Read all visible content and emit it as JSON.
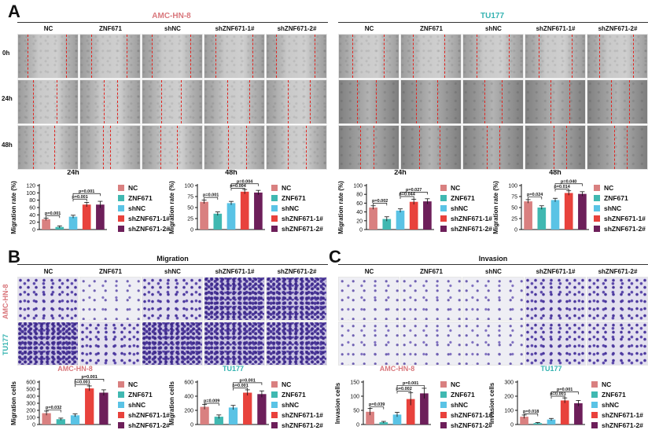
{
  "panels": {
    "A": "A",
    "B": "B",
    "C": "C"
  },
  "palette": [
    "#d98080",
    "#40b8b1",
    "#5ac3e5",
    "#e8423c",
    "#6d1f5a"
  ],
  "groups": [
    "NC",
    "ZNF671",
    "shNC",
    "shZNF671-1#",
    "shZNF671-2#"
  ],
  "panel_a": {
    "left_title": "AMC-HN-8",
    "right_title": "TU177",
    "rows": [
      "0h",
      "24h",
      "48h"
    ]
  },
  "panel_b": {
    "title": "Migration",
    "row_labels": [
      "AMC-HN-8",
      "TU177"
    ]
  },
  "panel_c": {
    "title": "Invasion"
  },
  "chart_data": [
    {
      "id": "a1",
      "type": "bar",
      "title": "24h",
      "ylabel": "Migration rate (%)",
      "ylim": [
        0,
        120
      ],
      "yticks": [
        0,
        20,
        40,
        60,
        80,
        100,
        120
      ],
      "categories": [
        "NC",
        "ZNF671",
        "shNC",
        "shZNF671-1#",
        "shZNF671-2#"
      ],
      "values": [
        28,
        7,
        35,
        68,
        68
      ],
      "errors": [
        3,
        3,
        4,
        6,
        9
      ],
      "brackets": [
        {
          "from": 0,
          "to": 1,
          "label": "p=0.001",
          "y": 38
        },
        {
          "from": 2,
          "to": 3,
          "label": "p=0.001",
          "y": 83
        },
        {
          "from": 2,
          "to": 4,
          "label": "p=0.001",
          "y": 98
        }
      ]
    },
    {
      "id": "a2",
      "type": "bar",
      "title": "48h",
      "ylabel": "Migration rate (%)",
      "ylim": [
        0,
        100
      ],
      "yticks": [
        0,
        25,
        50,
        75,
        100
      ],
      "categories": [
        "NC",
        "ZNF671",
        "shNC",
        "shZNF671-1#",
        "shZNF671-2#"
      ],
      "values": [
        63,
        36,
        60,
        86,
        84
      ],
      "errors": [
        4,
        4,
        4,
        5,
        5
      ],
      "brackets": [
        {
          "from": 0,
          "to": 1,
          "label": "p=0.001",
          "y": 73
        },
        {
          "from": 2,
          "to": 3,
          "label": "p=0.004",
          "y": 94
        },
        {
          "from": 2,
          "to": 4,
          "label": "p=0.004",
          "y": 104
        }
      ]
    },
    {
      "id": "a3",
      "type": "bar",
      "title": "24h",
      "ylabel": "Migration rate (%)",
      "ylim": [
        0,
        100
      ],
      "yticks": [
        0,
        20,
        40,
        60,
        80,
        100
      ],
      "categories": [
        "NC",
        "ZNF671",
        "shNC",
        "shZNF671-1#",
        "shZNF671-2#"
      ],
      "values": [
        50,
        24,
        43,
        63,
        64
      ],
      "errors": [
        4,
        5,
        4,
        6,
        6
      ],
      "brackets": [
        {
          "from": 0,
          "to": 1,
          "label": "p=0.002",
          "y": 60
        },
        {
          "from": 2,
          "to": 3,
          "label": "p=0.044",
          "y": 75
        },
        {
          "from": 2,
          "to": 4,
          "label": "p=0.027",
          "y": 85
        }
      ]
    },
    {
      "id": "a4",
      "type": "bar",
      "title": "48h",
      "ylabel": "Migration rate (%)",
      "ylim": [
        0,
        100
      ],
      "yticks": [
        0,
        25,
        50,
        75,
        100
      ],
      "categories": [
        "NC",
        "ZNF671",
        "shNC",
        "shZNF671-1#",
        "shZNF671-2#"
      ],
      "values": [
        64,
        50,
        67,
        83,
        81
      ],
      "errors": [
        4,
        4,
        4,
        5,
        5
      ],
      "brackets": [
        {
          "from": 0,
          "to": 1,
          "label": "p=0.024",
          "y": 74
        },
        {
          "from": 2,
          "to": 3,
          "label": "p=0.014",
          "y": 92
        },
        {
          "from": 2,
          "to": 4,
          "label": "p=0.040",
          "y": 104
        }
      ]
    },
    {
      "id": "b1",
      "type": "bar",
      "title": "AMC-HN-8",
      "ylabel": "Migration cells",
      "ylim": [
        0,
        600
      ],
      "yticks": [
        0,
        100,
        200,
        300,
        400,
        500,
        600
      ],
      "categories": [
        "NC",
        "ZNF671",
        "shNC",
        "shZNF671-1#",
        "shZNF671-2#"
      ],
      "values": [
        160,
        75,
        130,
        510,
        450
      ],
      "errors": [
        30,
        15,
        20,
        35,
        40
      ],
      "brackets": [
        {
          "from": 0,
          "to": 1,
          "label": "p=0.032",
          "y": 205
        },
        {
          "from": 2,
          "to": 3,
          "label": "p=0.001",
          "y": 565
        },
        {
          "from": 2,
          "to": 4,
          "label": "p=0.001",
          "y": 640
        }
      ]
    },
    {
      "id": "b2",
      "type": "bar",
      "title": "TU177",
      "ylabel": "Migration cells",
      "ylim": [
        0,
        600
      ],
      "yticks": [
        0,
        200,
        400,
        600
      ],
      "categories": [
        "NC",
        "ZNF671",
        "shNC",
        "shZNF671-1#",
        "shZNF671-2#"
      ],
      "values": [
        250,
        110,
        240,
        450,
        430
      ],
      "errors": [
        35,
        25,
        30,
        40,
        45
      ],
      "brackets": [
        {
          "from": 0,
          "to": 1,
          "label": "p=0.009",
          "y": 300
        },
        {
          "from": 2,
          "to": 3,
          "label": "p=0.001",
          "y": 515
        },
        {
          "from": 2,
          "to": 4,
          "label": "p=0.001",
          "y": 590
        }
      ]
    },
    {
      "id": "c1",
      "type": "bar",
      "title": "AMC-HN-8",
      "ylabel": "Invasion cells",
      "ylim": [
        0,
        150
      ],
      "yticks": [
        0,
        50,
        100,
        150
      ],
      "categories": [
        "NC",
        "ZNF671",
        "shNC",
        "shZNF671-1#",
        "shZNF671-2#"
      ],
      "values": [
        45,
        8,
        35,
        90,
        110
      ],
      "errors": [
        12,
        3,
        8,
        22,
        18
      ],
      "brackets": [
        {
          "from": 0,
          "to": 1,
          "label": "p=0.039",
          "y": 62
        },
        {
          "from": 2,
          "to": 3,
          "label": "p=0.002",
          "y": 118
        },
        {
          "from": 2,
          "to": 4,
          "label": "p=0.001",
          "y": 138
        }
      ]
    },
    {
      "id": "c2",
      "type": "bar",
      "title": "TU177",
      "ylabel": "Invasion cells",
      "ylim": [
        0,
        300
      ],
      "yticks": [
        0,
        100,
        200,
        300
      ],
      "categories": [
        "NC",
        "ZNF671",
        "shNC",
        "shZNF671-1#",
        "shZNF671-2#"
      ],
      "values": [
        55,
        10,
        35,
        170,
        150
      ],
      "errors": [
        12,
        4,
        8,
        18,
        20
      ],
      "brackets": [
        {
          "from": 0,
          "to": 1,
          "label": "p=0.018",
          "y": 75
        },
        {
          "from": 2,
          "to": 3,
          "label": "p=0.001",
          "y": 200
        },
        {
          "from": 2,
          "to": 4,
          "label": "p=0.001",
          "y": 230
        }
      ]
    }
  ]
}
